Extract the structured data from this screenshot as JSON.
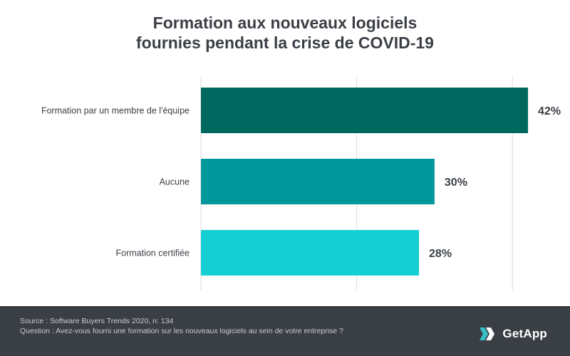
{
  "title": {
    "line1": "Formation aux nouveaux logiciels",
    "line2": "fournies pendant la crise de COVID-19"
  },
  "footer": {
    "source": "Source : Software Buyers Trends 2020, n: 134",
    "question": "Question : Avez-vous fourni une formation sur les nouveaux logiciels au sein de votre entreprise ?",
    "logo_text": "GetApp"
  },
  "colors": {
    "bar1": "#00675f",
    "bar2": "#00979a",
    "bar3": "#16cfd2",
    "grid": "#dcdcdc",
    "label": "#3b3f45",
    "footer_bg": "#3a3f46",
    "logo_accent": "#37c1c6"
  },
  "chart_data": {
    "type": "bar",
    "orientation": "horizontal",
    "categories": [
      "Formation par un membre de l'équipe",
      "Aucune",
      "Formation certifiée"
    ],
    "values": [
      42,
      30,
      28
    ],
    "value_labels": [
      "42%",
      "30%",
      "28%"
    ],
    "xlim": [
      0,
      50
    ],
    "grid": true,
    "legend": "none"
  }
}
